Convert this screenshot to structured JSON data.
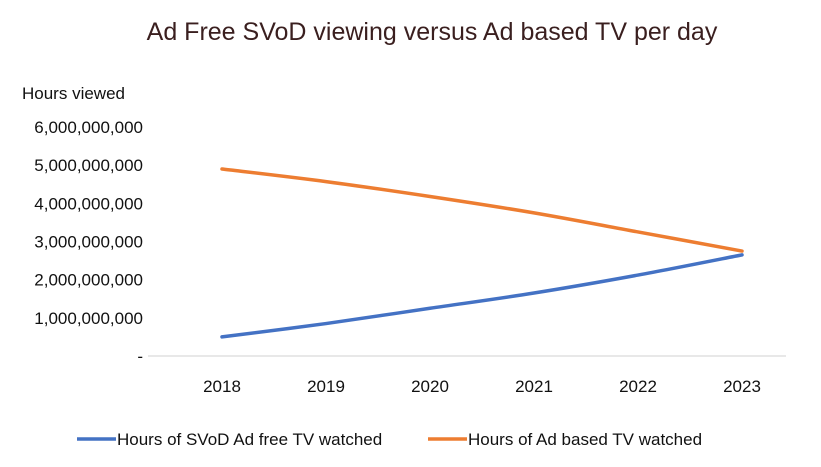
{
  "chart_data": {
    "type": "line",
    "title": "Ad Free SVoD viewing versus Ad based TV per day",
    "ylabel": "Hours viewed",
    "xlabel": "",
    "x": [
      "2018",
      "2019",
      "2020",
      "2021",
      "2022",
      "2023"
    ],
    "y_ticks": [
      "-",
      "1,000,000,000",
      "2,000,000,000",
      "3,000,000,000",
      "4,000,000,000",
      "5,000,000,000",
      "6,000,000,000"
    ],
    "ylim": [
      0,
      6000000000
    ],
    "grid": false,
    "legend_position": "bottom",
    "series": [
      {
        "name": "Hours of SVoD Ad free TV watched",
        "color": "#4472c4",
        "values": [
          500000000,
          850000000,
          1250000000,
          1650000000,
          2120000000,
          2650000000
        ]
      },
      {
        "name": "Hours of Ad based TV watched",
        "color": "#ed7d31",
        "values": [
          4900000000,
          4570000000,
          4180000000,
          3750000000,
          3250000000,
          2750000000
        ]
      }
    ]
  }
}
